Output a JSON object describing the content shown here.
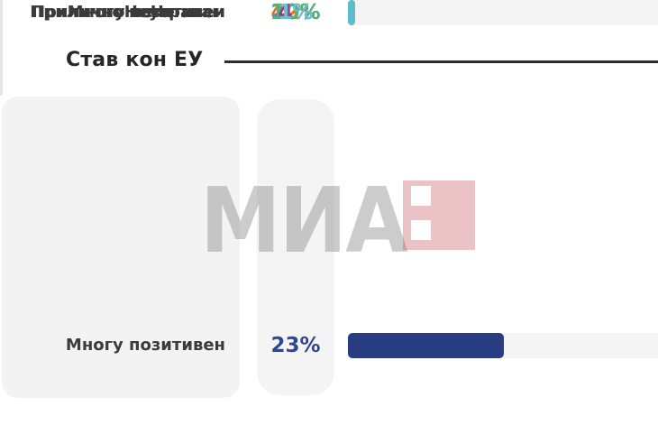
{
  "chart_data": {
    "type": "bar",
    "orientation": "horizontal",
    "title": "Став кон ЕУ",
    "unit": "%",
    "xlim": [
      0,
      46
    ],
    "grid": false,
    "legend": "none",
    "categories": [
      "Многу позитивен",
      "Прилично позитивен",
      "Неутрален",
      "Прилично негативен",
      "Многу негативен",
      "Не знам"
    ],
    "values": [
      23,
      42,
      20,
      10,
      4,
      1
    ],
    "rows": [
      {
        "label": "Многу позитивен",
        "value": 23,
        "display": "23%",
        "bar_color": "#283c82",
        "text_color": "#2d4795"
      },
      {
        "label": "Прилично позитивен",
        "value": 42,
        "display": "42%",
        "bar_color": "#e1751d",
        "text_color": "#e0751f"
      },
      {
        "label": "Неутрален",
        "value": 20,
        "display": "20%",
        "bar_color": "#6e87c9",
        "text_color": "#6380c3"
      },
      {
        "label": "Прилично негативен",
        "value": 10,
        "display": "10%",
        "bar_color": "#5db483",
        "text_color": "#53b274"
      },
      {
        "label": "Многу негативен",
        "value": 4,
        "display": "4%",
        "bar_color": "#8a3c90",
        "text_color": "#933d98"
      },
      {
        "label": "Не знам",
        "value": 1,
        "display": "1%",
        "bar_color": "#5fbccb",
        "text_color": "#6fbfca"
      }
    ]
  },
  "watermark": {
    "text": "МИА",
    "text_color": "#808080",
    "accent_color": "#c24a56"
  }
}
